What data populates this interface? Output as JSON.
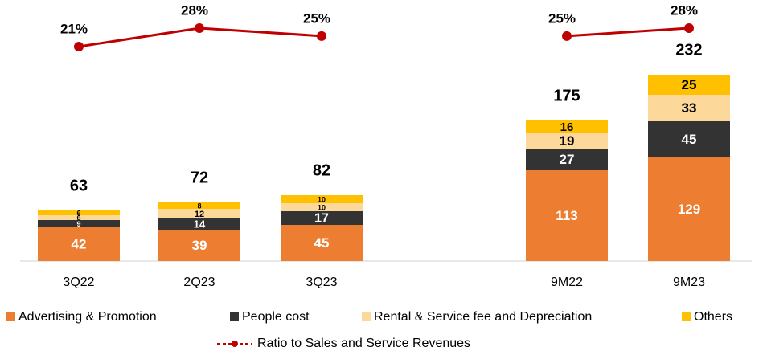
{
  "chart_data": {
    "type": "stacked_bar_line",
    "categories": [
      "3Q22",
      "2Q23",
      "3Q23",
      "9M22",
      "9M23"
    ],
    "series": [
      {
        "name": "Advertising & Promotion",
        "color": "#ED7D31",
        "values": [
          42,
          39,
          45,
          113,
          129
        ]
      },
      {
        "name": "People cost",
        "color": "#333333",
        "values": [
          9,
          14,
          17,
          27,
          45
        ]
      },
      {
        "name": "Rental & Service fee and Depreciation",
        "color": "#FCD99B",
        "values": [
          6,
          12,
          10,
          19,
          33
        ]
      },
      {
        "name": "Others",
        "color": "#FFC000",
        "values": [
          6,
          8,
          10,
          16,
          25
        ]
      },
      {
        "name": "Ratio to Sales and Service Revenues",
        "color": "#C00000",
        "axis": "y2",
        "type": "line",
        "values": [
          21,
          28,
          25,
          25,
          28
        ],
        "value_labels": [
          "21%",
          "28%",
          "25%",
          "25%",
          "28%"
        ]
      }
    ],
    "totals": [
      63,
      72,
      82,
      175,
      232
    ],
    "ylim": [
      0,
      325
    ],
    "y2lim": [
      14,
      35
    ]
  }
}
